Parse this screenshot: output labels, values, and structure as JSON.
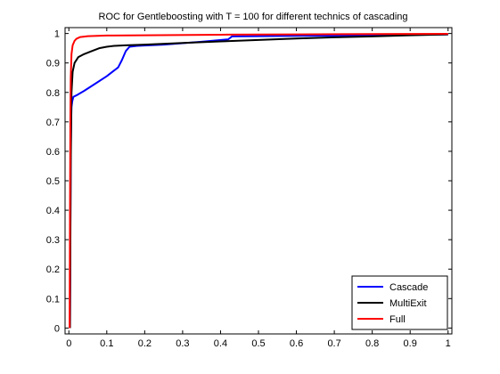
{
  "chart_data": {
    "type": "line",
    "title": "ROC for Gentleboosting with T = 100 for different technics of cascading",
    "xlabel": "",
    "ylabel": "",
    "xlim": [
      -0.01,
      1.01
    ],
    "ylim": [
      -0.02,
      1.02
    ],
    "xticks": [
      0,
      0.1,
      0.2,
      0.3,
      0.4,
      0.5,
      0.6,
      0.7,
      0.8,
      0.9,
      1
    ],
    "xtick_labels": [
      "0",
      "0.1",
      "0.2",
      "0.3",
      "0.4",
      "0.5",
      "0.6",
      "0.7",
      "0.8",
      "0.9",
      "1"
    ],
    "yticks": [
      0,
      0.1,
      0.2,
      0.3,
      0.4,
      0.5,
      0.6,
      0.7,
      0.8,
      0.9,
      1
    ],
    "ytick_labels": [
      "0",
      "0.1",
      "0.2",
      "0.3",
      "0.4",
      "0.5",
      "0.6",
      "0.7",
      "0.8",
      "0.9",
      "1"
    ],
    "grid": false,
    "legend_position": "bottom-right",
    "series": [
      {
        "name": "Cascade",
        "color": "#0000ff",
        "x": [
          0.003,
          0.004,
          0.005,
          0.006,
          0.007,
          0.009,
          0.012,
          0.02,
          0.04,
          0.07,
          0.1,
          0.13,
          0.14,
          0.15,
          0.16,
          0.18,
          0.25,
          0.35,
          0.42,
          0.43,
          0.6,
          0.8,
          1.0
        ],
        "y": [
          0.0,
          0.32,
          0.6,
          0.7,
          0.75,
          0.77,
          0.785,
          0.79,
          0.805,
          0.83,
          0.855,
          0.885,
          0.91,
          0.94,
          0.955,
          0.958,
          0.962,
          0.972,
          0.98,
          0.99,
          0.992,
          0.994,
          0.997
        ]
      },
      {
        "name": "MultiExit",
        "color": "#000000",
        "x": [
          0.003,
          0.005,
          0.007,
          0.01,
          0.015,
          0.025,
          0.04,
          0.06,
          0.08,
          0.1,
          0.12,
          0.15,
          0.2,
          0.3,
          0.4,
          0.5,
          0.6,
          0.7,
          0.8,
          0.9,
          1.0
        ],
        "y": [
          0.0,
          0.55,
          0.8,
          0.87,
          0.9,
          0.92,
          0.93,
          0.94,
          0.95,
          0.955,
          0.958,
          0.96,
          0.962,
          0.968,
          0.973,
          0.978,
          0.983,
          0.987,
          0.99,
          0.994,
          0.997
        ]
      },
      {
        "name": "Full",
        "color": "#ff0000",
        "x": [
          0.002,
          0.003,
          0.004,
          0.005,
          0.007,
          0.01,
          0.015,
          0.02,
          0.03,
          0.05,
          0.1,
          0.2,
          0.4,
          0.6,
          0.8,
          1.0
        ],
        "y": [
          0.0,
          0.4,
          0.7,
          0.85,
          0.93,
          0.96,
          0.975,
          0.982,
          0.988,
          0.991,
          0.993,
          0.994,
          0.996,
          0.997,
          0.998,
          0.999
        ]
      }
    ]
  }
}
